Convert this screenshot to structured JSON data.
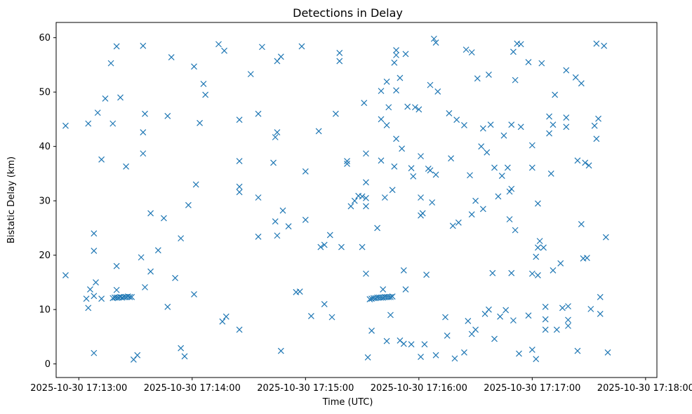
{
  "chart_data": {
    "type": "scatter",
    "title": "Detections in Delay",
    "xlabel": "Time (UTC)",
    "ylabel": "Bistatic Delay (km)",
    "marker": "x",
    "color": "#1f77b4",
    "grid": false,
    "legend": "none",
    "xlim": [
      "2025-10-30 17:12:48",
      "2025-10-30 17:18:06"
    ],
    "ylim": [
      -2.5,
      62.8
    ],
    "xticks": [
      "2025-10-30 17:13:00",
      "2025-10-30 17:14:00",
      "2025-10-30 17:15:00",
      "2025-10-30 17:16:00",
      "2025-10-30 17:17:00",
      "2025-10-30 17:18:00"
    ],
    "yticks": [
      0,
      10,
      20,
      30,
      40,
      50,
      60
    ],
    "points": [
      [
        "2025-10-30 17:12:53",
        43.8
      ],
      [
        "2025-10-30 17:12:53",
        16.3
      ],
      [
        "2025-10-30 17:13:05",
        44.2
      ],
      [
        "2025-10-30 17:13:05",
        10.3
      ],
      [
        "2025-10-30 17:13:04",
        12.0
      ],
      [
        "2025-10-30 17:13:06",
        13.7
      ],
      [
        "2025-10-30 17:13:08",
        24.0
      ],
      [
        "2025-10-30 17:13:08",
        20.8
      ],
      [
        "2025-10-30 17:13:08",
        2.0
      ],
      [
        "2025-10-30 17:13:09",
        15.0
      ],
      [
        "2025-10-30 17:13:08",
        12.5
      ],
      [
        "2025-10-30 17:13:10",
        46.2
      ],
      [
        "2025-10-30 17:13:12",
        37.6
      ],
      [
        "2025-10-30 17:13:12",
        12.0
      ],
      [
        "2025-10-30 17:13:14",
        48.8
      ],
      [
        "2025-10-30 17:13:17",
        55.3
      ],
      [
        "2025-10-30 17:13:18",
        44.2
      ],
      [
        "2025-10-30 17:13:18",
        12.1
      ],
      [
        "2025-10-30 17:13:19",
        12.2
      ],
      [
        "2025-10-30 17:13:20",
        12.2
      ],
      [
        "2025-10-30 17:13:21",
        12.2
      ],
      [
        "2025-10-30 17:13:22",
        12.3
      ],
      [
        "2025-10-30 17:13:23",
        12.2
      ],
      [
        "2025-10-30 17:13:24",
        12.3
      ],
      [
        "2025-10-30 17:13:25",
        12.3
      ],
      [
        "2025-10-30 17:13:26",
        12.4
      ],
      [
        "2025-10-30 17:13:27",
        12.3
      ],
      [
        "2025-10-30 17:13:28",
        12.3
      ],
      [
        "2025-10-30 17:13:20",
        58.4
      ],
      [
        "2025-10-30 17:13:22",
        49.0
      ],
      [
        "2025-10-30 17:13:20",
        18.0
      ],
      [
        "2025-10-30 17:13:20",
        13.6
      ],
      [
        "2025-10-30 17:13:25",
        36.3
      ],
      [
        "2025-10-30 17:13:29",
        0.8
      ],
      [
        "2025-10-30 17:13:31",
        1.6
      ],
      [
        "2025-10-30 17:13:34",
        58.5
      ],
      [
        "2025-10-30 17:13:35",
        46.0
      ],
      [
        "2025-10-30 17:13:34",
        42.6
      ],
      [
        "2025-10-30 17:13:34",
        38.7
      ],
      [
        "2025-10-30 17:13:33",
        19.6
      ],
      [
        "2025-10-30 17:13:35",
        14.1
      ],
      [
        "2025-10-30 17:13:38",
        27.7
      ],
      [
        "2025-10-30 17:13:38",
        17.0
      ],
      [
        "2025-10-30 17:13:42",
        20.9
      ],
      [
        "2025-10-30 17:13:45",
        26.8
      ],
      [
        "2025-10-30 17:13:47",
        45.6
      ],
      [
        "2025-10-30 17:13:47",
        10.5
      ],
      [
        "2025-10-30 17:13:49",
        56.4
      ],
      [
        "2025-10-30 17:13:51",
        15.8
      ],
      [
        "2025-10-30 17:13:54",
        23.1
      ],
      [
        "2025-10-30 17:13:54",
        2.9
      ],
      [
        "2025-10-30 17:13:56",
        1.4
      ],
      [
        "2025-10-30 17:13:58",
        29.2
      ],
      [
        "2025-10-30 17:14:01",
        54.7
      ],
      [
        "2025-10-30 17:14:02",
        33.0
      ],
      [
        "2025-10-30 17:14:01",
        12.8
      ],
      [
        "2025-10-30 17:14:04",
        44.3
      ],
      [
        "2025-10-30 17:14:06",
        51.5
      ],
      [
        "2025-10-30 17:14:07",
        49.5
      ],
      [
        "2025-10-30 17:14:14",
        58.8
      ],
      [
        "2025-10-30 17:14:17",
        57.6
      ],
      [
        "2025-10-30 17:14:16",
        7.8
      ],
      [
        "2025-10-30 17:14:18",
        8.7
      ],
      [
        "2025-10-30 17:14:25",
        44.9
      ],
      [
        "2025-10-30 17:14:25",
        37.3
      ],
      [
        "2025-10-30 17:14:25",
        32.6
      ],
      [
        "2025-10-30 17:14:25",
        31.6
      ],
      [
        "2025-10-30 17:14:25",
        6.3
      ],
      [
        "2025-10-30 17:14:31",
        53.3
      ],
      [
        "2025-10-30 17:14:35",
        46.0
      ],
      [
        "2025-10-30 17:14:35",
        30.6
      ],
      [
        "2025-10-30 17:14:35",
        23.4
      ],
      [
        "2025-10-30 17:14:37",
        58.3
      ],
      [
        "2025-10-30 17:14:43",
        37.0
      ],
      [
        "2025-10-30 17:14:44",
        41.7
      ],
      [
        "2025-10-30 17:14:45",
        42.6
      ],
      [
        "2025-10-30 17:14:44",
        26.2
      ],
      [
        "2025-10-30 17:14:45",
        23.6
      ],
      [
        "2025-10-30 17:14:45",
        55.7
      ],
      [
        "2025-10-30 17:14:47",
        56.5
      ],
      [
        "2025-10-30 17:14:48",
        28.2
      ],
      [
        "2025-10-30 17:14:47",
        2.4
      ],
      [
        "2025-10-30 17:14:51",
        25.3
      ],
      [
        "2025-10-30 17:14:55",
        13.2
      ],
      [
        "2025-10-30 17:14:57",
        13.3
      ],
      [
        "2025-10-30 17:14:58",
        58.4
      ],
      [
        "2025-10-30 17:15:00",
        26.5
      ],
      [
        "2025-10-30 17:15:00",
        35.4
      ],
      [
        "2025-10-30 17:15:03",
        8.8
      ],
      [
        "2025-10-30 17:15:07",
        42.8
      ],
      [
        "2025-10-30 17:15:08",
        21.5
      ],
      [
        "2025-10-30 17:15:10",
        21.9
      ],
      [
        "2025-10-30 17:15:10",
        11.0
      ],
      [
        "2025-10-30 17:15:13",
        23.7
      ],
      [
        "2025-10-30 17:15:14",
        8.6
      ],
      [
        "2025-10-30 17:15:16",
        46.0
      ],
      [
        "2025-10-30 17:15:18",
        57.2
      ],
      [
        "2025-10-30 17:15:18",
        55.7
      ],
      [
        "2025-10-30 17:15:19",
        21.5
      ],
      [
        "2025-10-30 17:15:22",
        37.3
      ],
      [
        "2025-10-30 17:15:22",
        36.8
      ],
      [
        "2025-10-30 17:15:24",
        29.0
      ],
      [
        "2025-10-30 17:15:26",
        30.0
      ],
      [
        "2025-10-30 17:15:28",
        30.9
      ],
      [
        "2025-10-30 17:15:30",
        30.8
      ],
      [
        "2025-10-30 17:15:30",
        21.5
      ],
      [
        "2025-10-30 17:15:32",
        30.5
      ],
      [
        "2025-10-30 17:15:32",
        29.0
      ],
      [
        "2025-10-30 17:15:31",
        48.0
      ],
      [
        "2025-10-30 17:15:32",
        38.7
      ],
      [
        "2025-10-30 17:15:32",
        33.4
      ],
      [
        "2025-10-30 17:15:32",
        16.6
      ],
      [
        "2025-10-30 17:15:33",
        1.2
      ],
      [
        "2025-10-30 17:15:34",
        11.9
      ],
      [
        "2025-10-30 17:15:35",
        6.1
      ],
      [
        "2025-10-30 17:15:35",
        12.0
      ],
      [
        "2025-10-30 17:15:36",
        12.1
      ],
      [
        "2025-10-30 17:15:37",
        12.1
      ],
      [
        "2025-10-30 17:15:38",
        12.2
      ],
      [
        "2025-10-30 17:15:39",
        12.2
      ],
      [
        "2025-10-30 17:15:40",
        12.2
      ],
      [
        "2025-10-30 17:15:41",
        12.2
      ],
      [
        "2025-10-30 17:15:42",
        12.3
      ],
      [
        "2025-10-30 17:15:43",
        12.3
      ],
      [
        "2025-10-30 17:15:44",
        12.3
      ],
      [
        "2025-10-30 17:15:45",
        12.3
      ],
      [
        "2025-10-30 17:15:46",
        12.4
      ],
      [
        "2025-10-30 17:15:38",
        25.0
      ],
      [
        "2025-10-30 17:15:40",
        50.2
      ],
      [
        "2025-10-30 17:15:40",
        45.0
      ],
      [
        "2025-10-30 17:15:40",
        37.4
      ],
      [
        "2025-10-30 17:15:41",
        13.7
      ],
      [
        "2025-10-30 17:15:42",
        30.6
      ],
      [
        "2025-10-30 17:15:43",
        51.9
      ],
      [
        "2025-10-30 17:15:43",
        43.9
      ],
      [
        "2025-10-30 17:15:43",
        4.2
      ],
      [
        "2025-10-30 17:15:44",
        47.2
      ],
      [
        "2025-10-30 17:15:45",
        9.0
      ],
      [
        "2025-10-30 17:15:46",
        32.0
      ],
      [
        "2025-10-30 17:15:47",
        55.4
      ],
      [
        "2025-10-30 17:15:48",
        57.7
      ],
      [
        "2025-10-30 17:15:48",
        56.8
      ],
      [
        "2025-10-30 17:15:48",
        50.3
      ],
      [
        "2025-10-30 17:15:48",
        41.4
      ],
      [
        "2025-10-30 17:15:47",
        36.3
      ],
      [
        "2025-10-30 17:15:50",
        52.6
      ],
      [
        "2025-10-30 17:15:50",
        4.3
      ],
      [
        "2025-10-30 17:15:51",
        39.6
      ],
      [
        "2025-10-30 17:15:52",
        17.2
      ],
      [
        "2025-10-30 17:15:52",
        3.7
      ],
      [
        "2025-10-30 17:15:53",
        57.0
      ],
      [
        "2025-10-30 17:15:54",
        47.3
      ],
      [
        "2025-10-30 17:15:53",
        13.7
      ],
      [
        "2025-10-30 17:15:56",
        3.6
      ],
      [
        "2025-10-30 17:15:56",
        36.0
      ],
      [
        "2025-10-30 17:15:57",
        34.5
      ],
      [
        "2025-10-30 17:15:58",
        47.2
      ],
      [
        "2025-10-30 17:16:00",
        46.8
      ],
      [
        "2025-10-30 17:16:01",
        38.2
      ],
      [
        "2025-10-30 17:16:01",
        30.6
      ],
      [
        "2025-10-30 17:16:01",
        27.3
      ],
      [
        "2025-10-30 17:16:02",
        27.7
      ],
      [
        "2025-10-30 17:16:01",
        1.3
      ],
      [
        "2025-10-30 17:16:03",
        3.6
      ],
      [
        "2025-10-30 17:16:04",
        16.4
      ],
      [
        "2025-10-30 17:16:05",
        35.9
      ],
      [
        "2025-10-30 17:16:06",
        35.6
      ],
      [
        "2025-10-30 17:16:06",
        51.3
      ],
      [
        "2025-10-30 17:16:07",
        29.7
      ],
      [
        "2025-10-30 17:16:08",
        59.8
      ],
      [
        "2025-10-30 17:16:09",
        59.1
      ],
      [
        "2025-10-30 17:16:09",
        34.8
      ],
      [
        "2025-10-30 17:16:09",
        1.6
      ],
      [
        "2025-10-30 17:16:10",
        50.1
      ],
      [
        "2025-10-30 17:16:14",
        8.6
      ],
      [
        "2025-10-30 17:16:15",
        5.2
      ],
      [
        "2025-10-30 17:16:16",
        46.1
      ],
      [
        "2025-10-30 17:16:17",
        37.8
      ],
      [
        "2025-10-30 17:16:18",
        25.4
      ],
      [
        "2025-10-30 17:16:19",
        1.0
      ],
      [
        "2025-10-30 17:16:20",
        44.9
      ],
      [
        "2025-10-30 17:16:21",
        26.0
      ],
      [
        "2025-10-30 17:16:24",
        43.9
      ],
      [
        "2025-10-30 17:16:24",
        2.1
      ],
      [
        "2025-10-30 17:16:25",
        57.8
      ],
      [
        "2025-10-30 17:16:26",
        7.9
      ],
      [
        "2025-10-30 17:16:27",
        34.7
      ],
      [
        "2025-10-30 17:16:28",
        57.3
      ],
      [
        "2025-10-30 17:16:28",
        27.5
      ],
      [
        "2025-10-30 17:16:28",
        5.5
      ],
      [
        "2025-10-30 17:16:30",
        30.0
      ],
      [
        "2025-10-30 17:16:30",
        6.3
      ],
      [
        "2025-10-30 17:16:31",
        52.5
      ],
      [
        "2025-10-30 17:16:33",
        40.0
      ],
      [
        "2025-10-30 17:16:34",
        43.3
      ],
      [
        "2025-10-30 17:16:34",
        28.5
      ],
      [
        "2025-10-30 17:16:35",
        9.2
      ],
      [
        "2025-10-30 17:16:36",
        38.9
      ],
      [
        "2025-10-30 17:16:37",
        53.2
      ],
      [
        "2025-10-30 17:16:38",
        44.0
      ],
      [
        "2025-10-30 17:16:37",
        10.0
      ],
      [
        "2025-10-30 17:16:39",
        16.7
      ],
      [
        "2025-10-30 17:16:40",
        36.1
      ],
      [
        "2025-10-30 17:16:40",
        4.6
      ],
      [
        "2025-10-30 17:16:42",
        30.8
      ],
      [
        "2025-10-30 17:16:43",
        8.7
      ],
      [
        "2025-10-30 17:16:44",
        34.6
      ],
      [
        "2025-10-30 17:16:45",
        42.0
      ],
      [
        "2025-10-30 17:16:46",
        9.9
      ],
      [
        "2025-10-30 17:16:47",
        36.1
      ],
      [
        "2025-10-30 17:16:48",
        31.7
      ],
      [
        "2025-10-30 17:16:48",
        26.6
      ],
      [
        "2025-10-30 17:16:49",
        32.2
      ],
      [
        "2025-10-30 17:16:49",
        44.0
      ],
      [
        "2025-10-30 17:16:49",
        16.7
      ],
      [
        "2025-10-30 17:16:50",
        8.0
      ],
      [
        "2025-10-30 17:16:50",
        57.4
      ],
      [
        "2025-10-30 17:16:51",
        52.2
      ],
      [
        "2025-10-30 17:16:51",
        24.6
      ],
      [
        "2025-10-30 17:16:52",
        58.9
      ],
      [
        "2025-10-30 17:16:54",
        58.8
      ],
      [
        "2025-10-30 17:16:54",
        43.6
      ],
      [
        "2025-10-30 17:16:53",
        1.9
      ],
      [
        "2025-10-30 17:16:58",
        55.5
      ],
      [
        "2025-10-30 17:16:58",
        8.9
      ],
      [
        "2025-10-30 17:17:00",
        40.2
      ],
      [
        "2025-10-30 17:17:00",
        36.1
      ],
      [
        "2025-10-30 17:17:00",
        16.6
      ],
      [
        "2025-10-30 17:17:00",
        2.6
      ],
      [
        "2025-10-30 17:17:02",
        0.9
      ],
      [
        "2025-10-30 17:17:03",
        29.5
      ],
      [
        "2025-10-30 17:17:03",
        21.4
      ],
      [
        "2025-10-30 17:17:03",
        16.3
      ],
      [
        "2025-10-30 17:17:04",
        22.6
      ],
      [
        "2025-10-30 17:17:05",
        55.3
      ],
      [
        "2025-10-30 17:17:06",
        21.4
      ],
      [
        "2025-10-30 17:17:07",
        10.5
      ],
      [
        "2025-10-30 17:17:07",
        8.2
      ],
      [
        "2025-10-30 17:17:07",
        6.3
      ],
      [
        "2025-10-30 17:17:02",
        19.7
      ],
      [
        "2025-10-30 17:17:09",
        45.5
      ],
      [
        "2025-10-30 17:17:09",
        42.4
      ],
      [
        "2025-10-30 17:17:10",
        35.0
      ],
      [
        "2025-10-30 17:17:11",
        44.0
      ],
      [
        "2025-10-30 17:17:12",
        49.5
      ],
      [
        "2025-10-30 17:17:11",
        17.2
      ],
      [
        "2025-10-30 17:17:13",
        6.3
      ],
      [
        "2025-10-30 17:17:15",
        18.5
      ],
      [
        "2025-10-30 17:17:16",
        10.3
      ],
      [
        "2025-10-30 17:17:18",
        54.0
      ],
      [
        "2025-10-30 17:17:18",
        45.3
      ],
      [
        "2025-10-30 17:17:18",
        43.6
      ],
      [
        "2025-10-30 17:17:19",
        10.6
      ],
      [
        "2025-10-30 17:17:19",
        8.1
      ],
      [
        "2025-10-30 17:17:19",
        7.0
      ],
      [
        "2025-10-30 17:17:23",
        52.7
      ],
      [
        "2025-10-30 17:17:24",
        37.4
      ],
      [
        "2025-10-30 17:17:24",
        2.4
      ],
      [
        "2025-10-30 17:17:26",
        51.6
      ],
      [
        "2025-10-30 17:17:26",
        25.7
      ],
      [
        "2025-10-30 17:17:27",
        19.4
      ],
      [
        "2025-10-30 17:17:28",
        37.0
      ],
      [
        "2025-10-30 17:17:29",
        19.5
      ],
      [
        "2025-10-30 17:17:30",
        36.5
      ],
      [
        "2025-10-30 17:17:31",
        10.1
      ],
      [
        "2025-10-30 17:17:33",
        43.8
      ],
      [
        "2025-10-30 17:17:34",
        41.4
      ],
      [
        "2025-10-30 17:17:35",
        45.1
      ],
      [
        "2025-10-30 17:17:34",
        58.9
      ],
      [
        "2025-10-30 17:17:36",
        12.3
      ],
      [
        "2025-10-30 17:17:36",
        9.2
      ],
      [
        "2025-10-30 17:17:38",
        58.5
      ],
      [
        "2025-10-30 17:17:39",
        23.3
      ],
      [
        "2025-10-30 17:17:40",
        2.1
      ]
    ]
  }
}
